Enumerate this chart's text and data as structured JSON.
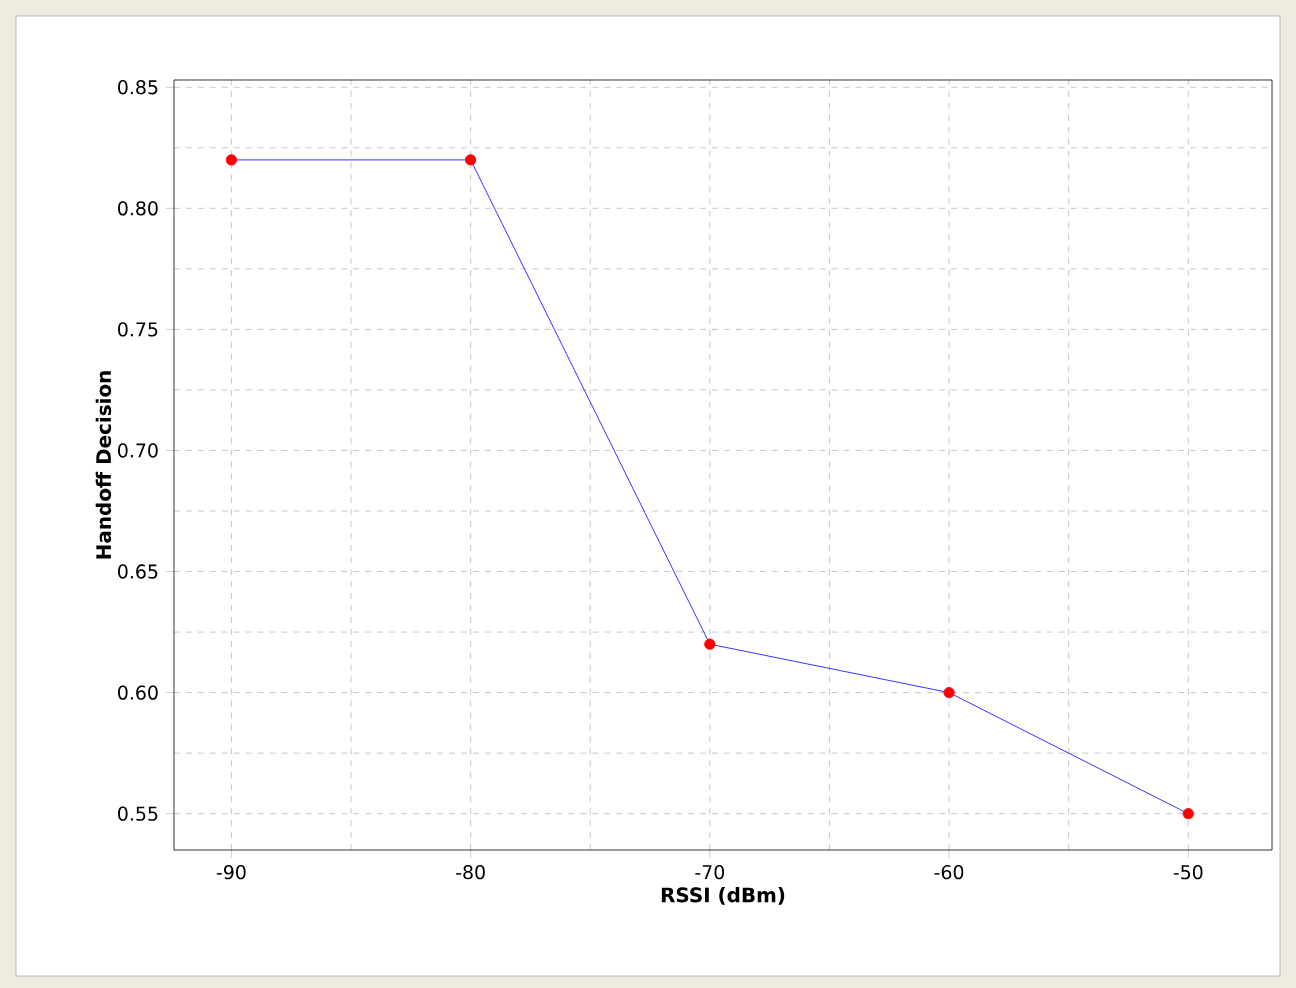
{
  "chart_data": {
    "type": "line",
    "xlabel": "RSSI (dBm)",
    "ylabel": "Handoff Decision",
    "x": [
      -90,
      -80,
      -70,
      -60,
      -50
    ],
    "series": [
      {
        "color": "#0000ff",
        "marker": "none",
        "values": [
          0.82,
          0.82,
          0.62,
          0.6,
          0.55
        ]
      },
      {
        "type": "scatter",
        "color": "#ff0000",
        "marker": "circle",
        "values": [
          0.82,
          0.82,
          0.62,
          0.6,
          0.55
        ]
      }
    ],
    "xlim": [
      -92.4,
      -46.5
    ],
    "ylim": [
      0.535,
      0.853
    ],
    "xticks": [
      -90,
      -80,
      -70,
      -60,
      -50
    ],
    "yticks": [
      {
        "value": 0.55,
        "label": "0.55"
      },
      {
        "value": 0.6,
        "label": "0.60"
      },
      {
        "value": 0.65,
        "label": "0.65"
      },
      {
        "value": 0.7,
        "label": "0.70"
      },
      {
        "value": 0.75,
        "label": "0.75"
      },
      {
        "value": 0.8,
        "label": "0.80"
      },
      {
        "value": 0.85,
        "label": "0.85"
      }
    ],
    "grid": true
  }
}
